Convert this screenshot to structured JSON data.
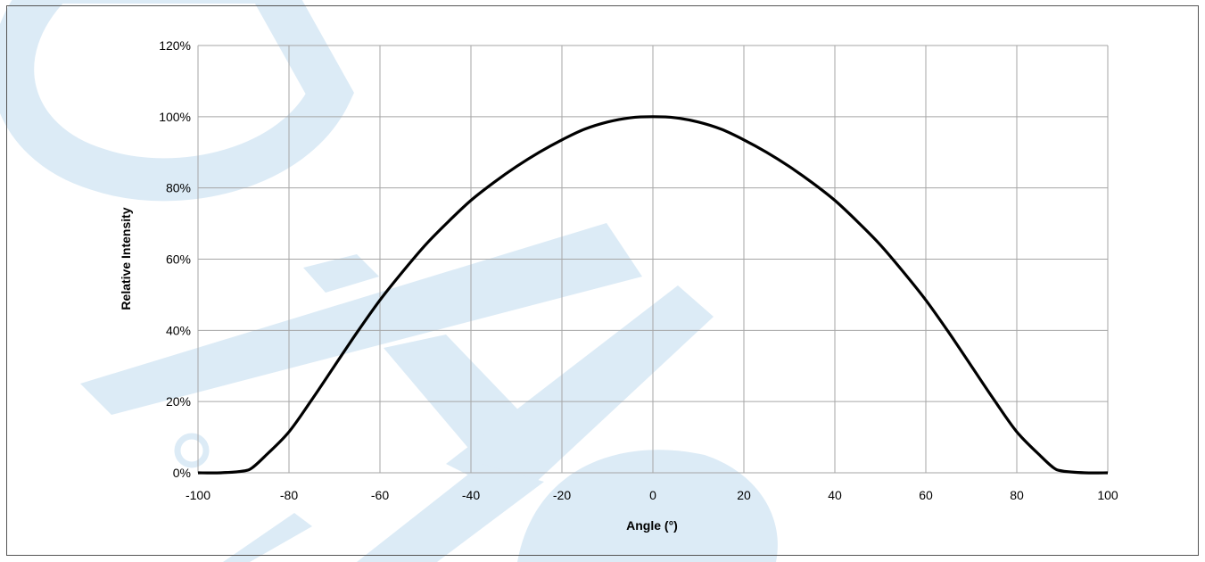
{
  "chart_data": {
    "type": "line",
    "title": "",
    "xlabel": "Angle (°)",
    "ylabel": "Relative Intensity",
    "xlim": [
      -100,
      100
    ],
    "ylim": [
      0,
      120
    ],
    "x_ticks": [
      -100,
      -80,
      -60,
      -40,
      -20,
      0,
      20,
      40,
      60,
      80,
      100
    ],
    "y_ticks": [
      0,
      20,
      40,
      60,
      80,
      100,
      120
    ],
    "x_tick_labels": [
      "-100",
      "-80",
      "-60",
      "-40",
      "-20",
      "0",
      "20",
      "40",
      "60",
      "80",
      "100"
    ],
    "y_tick_labels": [
      "0%",
      "20%",
      "40%",
      "60%",
      "80%",
      "100%",
      "120%"
    ],
    "y_unit": "%",
    "grid": true,
    "legend": "none",
    "series": [
      {
        "color": "#000000",
        "x": [
          -100,
          -95,
          -90,
          -88,
          -85,
          -80,
          -75,
          -70,
          -65,
          -60,
          -55,
          -50,
          -45,
          -40,
          -35,
          -30,
          -25,
          -20,
          -15,
          -10,
          -5,
          0,
          5,
          10,
          15,
          20,
          25,
          30,
          35,
          40,
          45,
          50,
          55,
          60,
          65,
          70,
          75,
          80,
          85,
          88,
          90,
          95,
          100
        ],
        "y": [
          0,
          0,
          0.5,
          1.5,
          5,
          11.5,
          20.5,
          30,
          39.5,
          48.5,
          56.5,
          64,
          70.5,
          76.5,
          81.5,
          86,
          90,
          93.5,
          96.5,
          98.5,
          99.7,
          100,
          99.7,
          98.5,
          96.5,
          93.5,
          90,
          86,
          81.5,
          76.5,
          70.5,
          64,
          56.5,
          48.5,
          39.5,
          30,
          20.5,
          11.5,
          5,
          1.5,
          0.5,
          0,
          0
        ]
      }
    ]
  },
  "watermark": {
    "color": "#dcebf6"
  },
  "frame": {
    "border_color": "#555555",
    "grid_color": "#a6a6a6"
  }
}
